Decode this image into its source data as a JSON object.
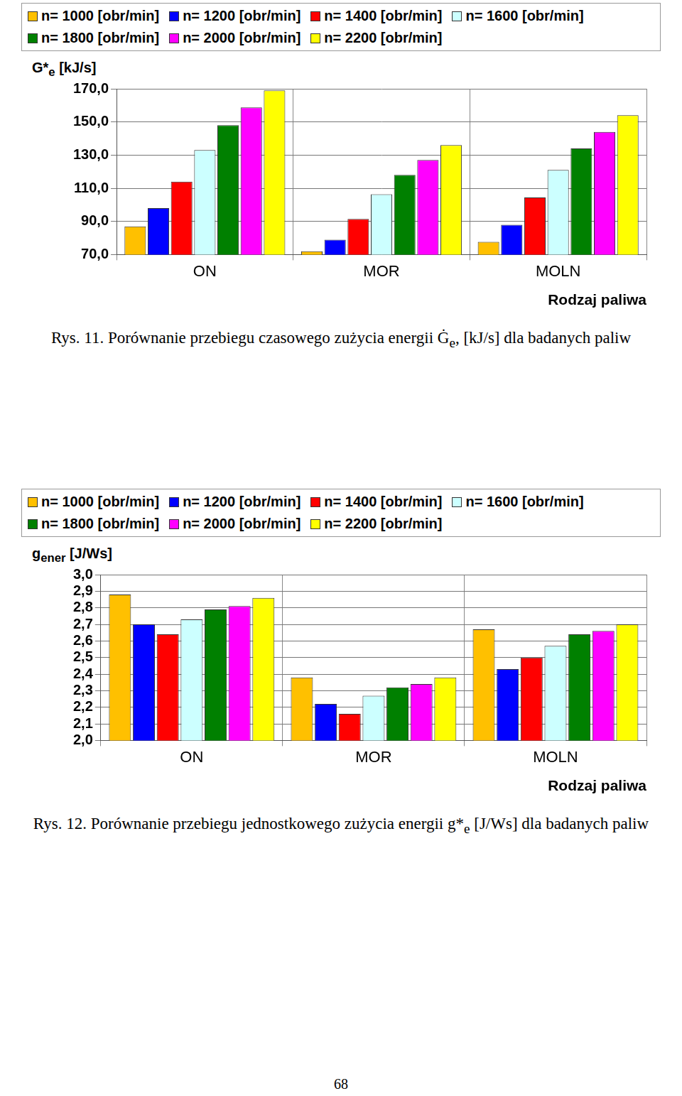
{
  "chart_data": [
    {
      "type": "bar",
      "y_label": [
        "G*",
        "e",
        " [kJ/s]"
      ],
      "x_label": "Rodzaj paliwa",
      "caption": [
        "Rys. 11. Porównanie przebiegu czasowego zużycia energii Ġ",
        "e",
        ", [kJ/s] dla badanych paliw"
      ],
      "categories": [
        "ON",
        "MOR",
        "MOLN"
      ],
      "series": [
        {
          "name": "n= 1000 [obr/min]",
          "color": "#FFC000",
          "values": [
            87,
            72,
            77.7
          ]
        },
        {
          "name": "n= 1200 [obr/min]",
          "color": "#0000FF",
          "values": [
            98,
            79,
            88
          ]
        },
        {
          "name": "n= 1400 [obr/min]",
          "color": "#FF0000",
          "values": [
            114,
            91.5,
            104.4
          ]
        },
        {
          "name": "n= 1600 [obr/min]",
          "color": "#CCFFFF",
          "values": [
            133,
            106.4,
            121
          ]
        },
        {
          "name": "n= 1800 [obr/min]",
          "color": "#008000",
          "values": [
            148,
            118,
            134
          ]
        },
        {
          "name": "n= 2000 [obr/min]",
          "color": "#FF00FF",
          "values": [
            158.7,
            127,
            144
          ]
        },
        {
          "name": "n= 2200 [obr/min]",
          "color": "#FFFF00",
          "values": [
            169,
            136,
            154
          ]
        }
      ],
      "ylim": [
        70,
        170
      ],
      "yticks": [
        {
          "value": 70,
          "label": "70,0"
        },
        {
          "value": 90,
          "label": "90,0"
        },
        {
          "value": 110,
          "label": "110,0"
        },
        {
          "value": 130,
          "label": "130,0"
        },
        {
          "value": 150,
          "label": "150,0"
        },
        {
          "value": 170,
          "label": "170,0"
        }
      ],
      "grid": true,
      "legend": "top"
    },
    {
      "type": "bar",
      "y_label": [
        "g",
        "ener",
        " [J/Ws]"
      ],
      "x_label": "Rodzaj paliwa",
      "caption": [
        "Rys. 12. Porównanie przebiegu jednostkowego zużycia energii g*",
        "e",
        " [J/Ws] dla badanych paliw"
      ],
      "categories": [
        "ON",
        "MOR",
        "MOLN"
      ],
      "series": [
        {
          "name": "n= 1000 [obr/min]",
          "color": "#FFC000",
          "values": [
            2.88,
            2.38,
            2.67
          ]
        },
        {
          "name": "n= 1200 [obr/min]",
          "color": "#0000FF",
          "values": [
            2.7,
            2.22,
            2.43
          ]
        },
        {
          "name": "n= 1400 [obr/min]",
          "color": "#FF0000",
          "values": [
            2.64,
            2.16,
            2.5
          ]
        },
        {
          "name": "n= 1600 [obr/min]",
          "color": "#CCFFFF",
          "values": [
            2.73,
            2.27,
            2.57
          ]
        },
        {
          "name": "n= 1800 [obr/min]",
          "color": "#008000",
          "values": [
            2.79,
            2.32,
            2.64
          ]
        },
        {
          "name": "n= 2000 [obr/min]",
          "color": "#FF00FF",
          "values": [
            2.81,
            2.34,
            2.66
          ]
        },
        {
          "name": "n= 2200 [obr/min]",
          "color": "#FFFF00",
          "values": [
            2.86,
            2.38,
            2.7
          ]
        }
      ],
      "ylim": [
        2.0,
        3.0
      ],
      "yticks": [
        {
          "value": 2.0,
          "label": "2,0"
        },
        {
          "value": 2.1,
          "label": "2,1"
        },
        {
          "value": 2.2,
          "label": "2,2"
        },
        {
          "value": 2.3,
          "label": "2,3"
        },
        {
          "value": 2.4,
          "label": "2,4"
        },
        {
          "value": 2.5,
          "label": "2,5"
        },
        {
          "value": 2.6,
          "label": "2,6"
        },
        {
          "value": 2.7,
          "label": "2,7"
        },
        {
          "value": 2.8,
          "label": "2,8"
        },
        {
          "value": 2.9,
          "label": "2,9"
        },
        {
          "value": 3.0,
          "label": "3,0"
        }
      ],
      "grid": true,
      "legend": "top"
    }
  ],
  "page_number": "68"
}
